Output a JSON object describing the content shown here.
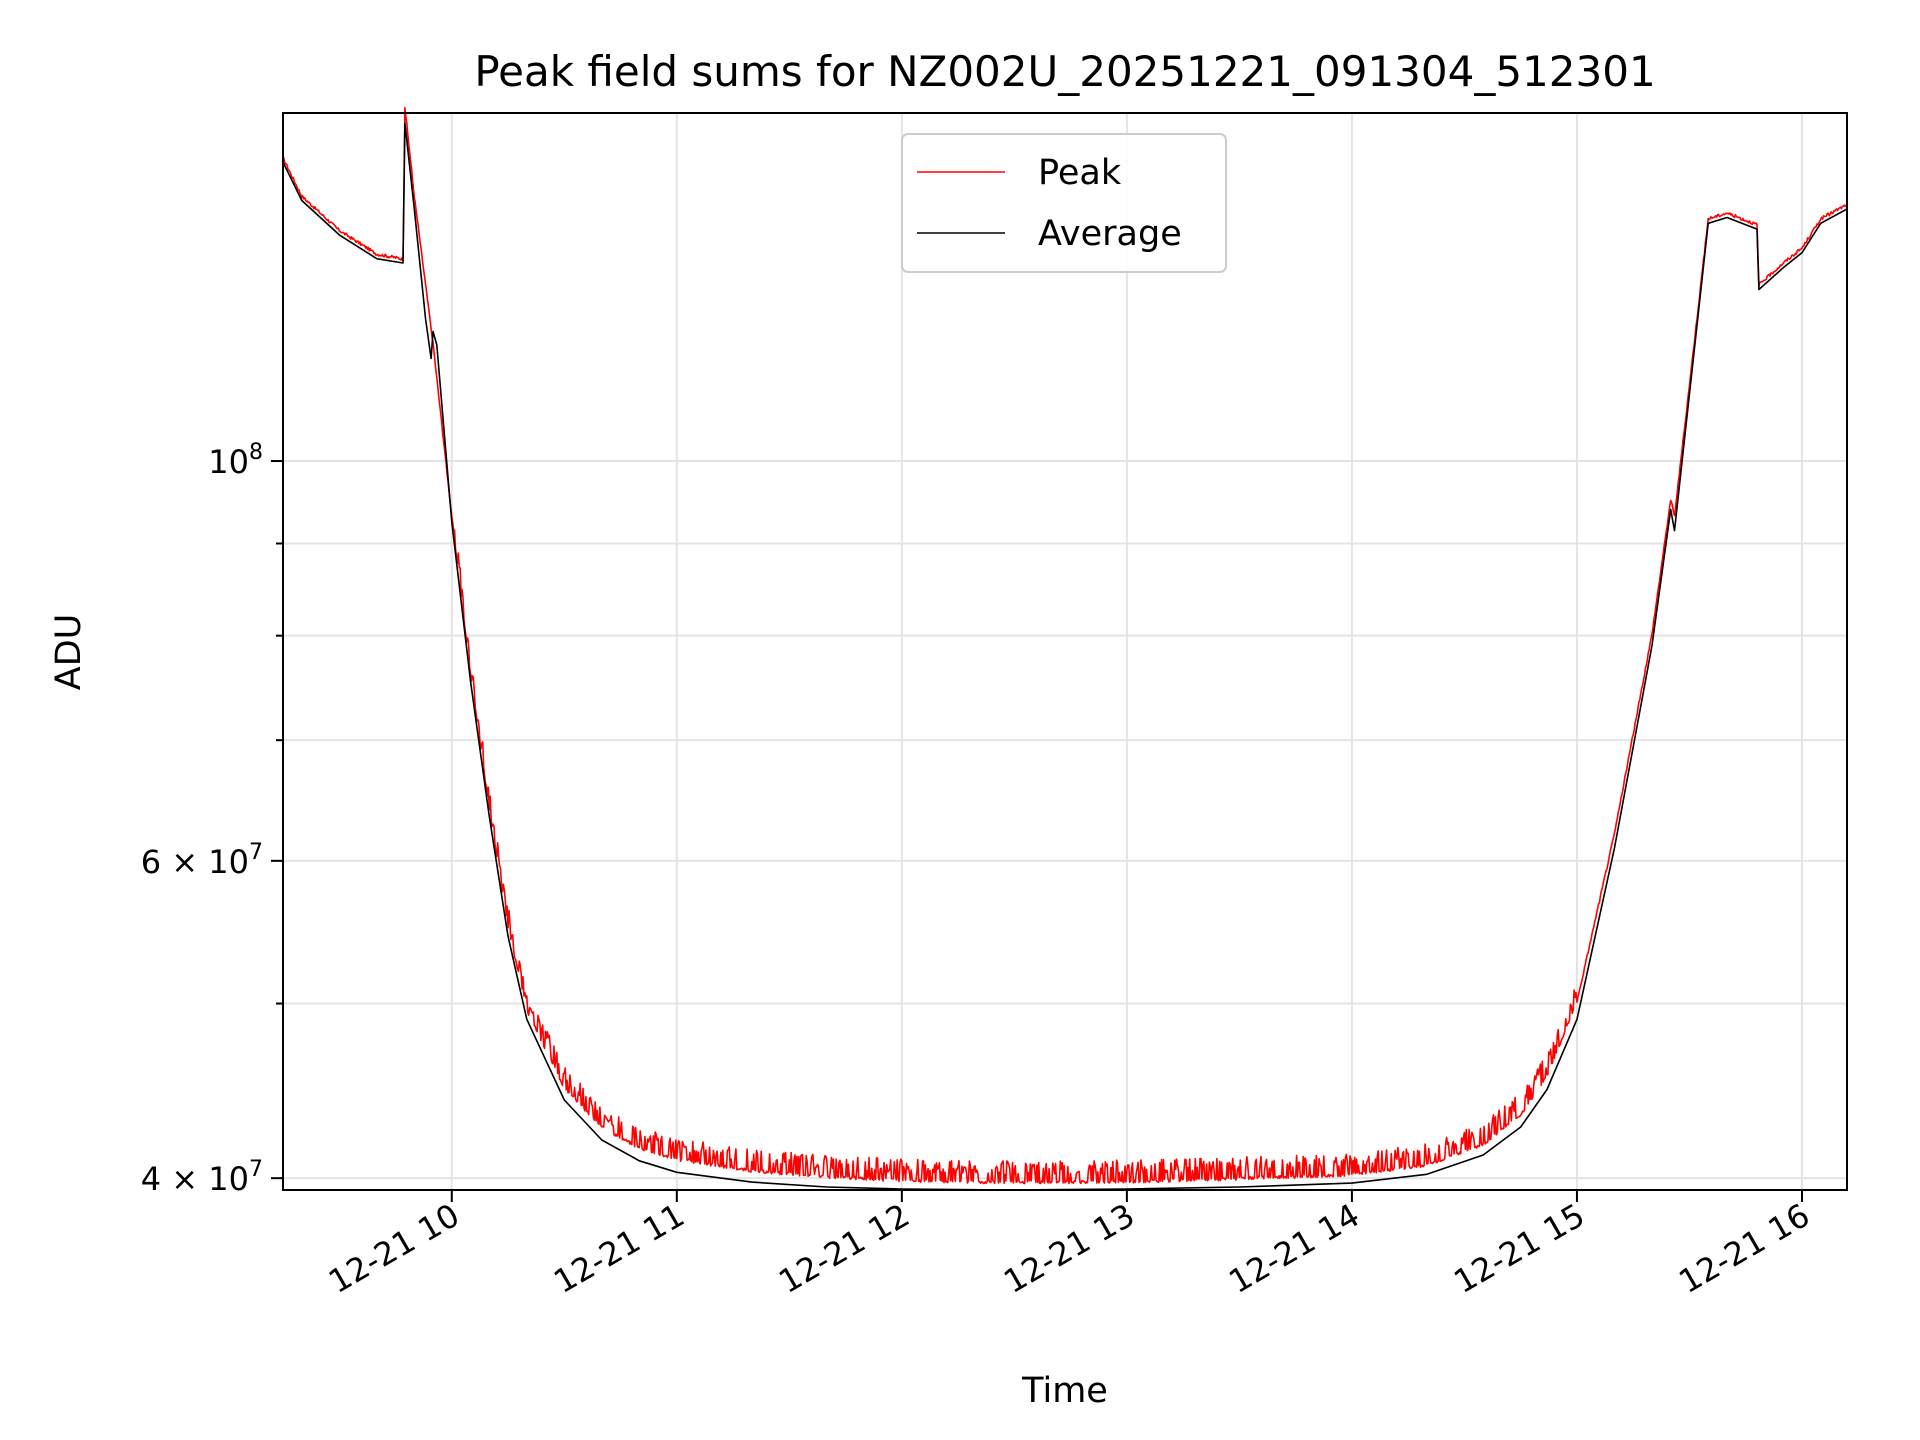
{
  "chart_data": {
    "type": "line",
    "title": "Peak field sums for NZ002U_20251221_091304_512301",
    "xlabel": "Time",
    "ylabel": "ADU",
    "yscale": "log",
    "ylim": [
      39400000,
      156000000
    ],
    "xlim": [
      "2025-12-21 09:15",
      "2025-12-21 16:12"
    ],
    "x_ticks": [
      {
        "value": "2025-12-21 10:00",
        "label": "12-21 10"
      },
      {
        "value": "2025-12-21 11:00",
        "label": "12-21 11"
      },
      {
        "value": "2025-12-21 12:00",
        "label": "12-21 12"
      },
      {
        "value": "2025-12-21 13:00",
        "label": "12-21 13"
      },
      {
        "value": "2025-12-21 14:00",
        "label": "12-21 14"
      },
      {
        "value": "2025-12-21 15:00",
        "label": "12-21 15"
      },
      {
        "value": "2025-12-21 16:00",
        "label": "12-21 16"
      }
    ],
    "y_major_ticks": [
      {
        "value": 40000000,
        "base": "4 × 10",
        "exp": "7"
      },
      {
        "value": 60000000,
        "base": "6 × 10",
        "exp": "7"
      },
      {
        "value": 100000000,
        "base": "10",
        "exp": "8"
      }
    ],
    "y_minor_ticks": [
      50000000,
      70000000,
      80000000,
      90000000,
      200000000
    ],
    "grid": true,
    "legend_position": "top-center",
    "series": [
      {
        "name": "Peak",
        "color": "#ff0000",
        "style": "noisy-upper",
        "points": [
          [
            "2025-12-21 09:15",
            147000000
          ],
          [
            "2025-12-21 09:20",
            140000000
          ],
          [
            "2025-12-21 09:30",
            134000000
          ],
          [
            "2025-12-21 09:40",
            130000000
          ],
          [
            "2025-12-21 09:47",
            129200000
          ],
          [
            "2025-12-21 09:47.5",
            157000000
          ],
          [
            "2025-12-21 09:50",
            140000000
          ],
          [
            "2025-12-21 09:55",
            116000000
          ],
          [
            "2025-12-21 10:00",
            93000000
          ],
          [
            "2025-12-21 10:05",
            76000000
          ],
          [
            "2025-12-21 10:10",
            64000000
          ],
          [
            "2025-12-21 10:15",
            55000000
          ],
          [
            "2025-12-21 10:20",
            49500000
          ],
          [
            "2025-12-21 10:30",
            44800000
          ],
          [
            "2025-12-21 10:40",
            42600000
          ],
          [
            "2025-12-21 10:50",
            41500000
          ],
          [
            "2025-12-21 11:00",
            40900000
          ],
          [
            "2025-12-21 11:20",
            40300000
          ],
          [
            "2025-12-21 11:40",
            40000000
          ],
          [
            "2025-12-21 12:00",
            39800000
          ],
          [
            "2025-12-21 12:30",
            39700000
          ],
          [
            "2025-12-21 13:00",
            39750000
          ],
          [
            "2025-12-21 13:30",
            39900000
          ],
          [
            "2025-12-21 14:00",
            40100000
          ],
          [
            "2025-12-21 14:20",
            40600000
          ],
          [
            "2025-12-21 14:35",
            41700000
          ],
          [
            "2025-12-21 14:45",
            43300000
          ],
          [
            "2025-12-21 14:52",
            45500000
          ],
          [
            "2025-12-21 15:00",
            50000000
          ],
          [
            "2025-12-21 15:10",
            62000000
          ],
          [
            "2025-12-21 15:20",
            80000000
          ],
          [
            "2025-12-21 15:25",
            95000000
          ],
          [
            "2025-12-21 15:26",
            93000000
          ],
          [
            "2025-12-21 15:30",
            110000000
          ],
          [
            "2025-12-21 15:35",
            136000000
          ],
          [
            "2025-12-21 15:40",
            137000000
          ],
          [
            "2025-12-21 15:48",
            135000000
          ],
          [
            "2025-12-21 15:48.5",
            125000000
          ],
          [
            "2025-12-21 15:55",
            128500000
          ],
          [
            "2025-12-21 16:00",
            131000000
          ],
          [
            "2025-12-21 16:05",
            136000000
          ],
          [
            "2025-12-21 16:12",
            138500000
          ]
        ]
      },
      {
        "name": "Average",
        "color": "#000000",
        "style": "smooth",
        "points": [
          [
            "2025-12-21 09:15",
            146500000
          ],
          [
            "2025-12-21 09:20",
            139500000
          ],
          [
            "2025-12-21 09:30",
            133500000
          ],
          [
            "2025-12-21 09:40",
            129500000
          ],
          [
            "2025-12-21 09:47",
            128800000
          ],
          [
            "2025-12-21 09:47.5",
            154000000
          ],
          [
            "2025-12-21 09:50",
            138000000
          ],
          [
            "2025-12-21 09:53",
            120000000
          ],
          [
            "2025-12-21 09:54.5",
            114000000
          ],
          [
            "2025-12-21 09:55",
            118000000
          ],
          [
            "2025-12-21 09:56",
            116000000
          ],
          [
            "2025-12-21 10:00",
            92500000
          ],
          [
            "2025-12-21 10:05",
            75500000
          ],
          [
            "2025-12-21 10:10",
            63500000
          ],
          [
            "2025-12-21 10:15",
            54500000
          ],
          [
            "2025-12-21 10:20",
            49000000
          ],
          [
            "2025-12-21 10:30",
            44200000
          ],
          [
            "2025-12-21 10:40",
            42000000
          ],
          [
            "2025-12-21 10:50",
            40900000
          ],
          [
            "2025-12-21 11:00",
            40300000
          ],
          [
            "2025-12-21 11:20",
            39800000
          ],
          [
            "2025-12-21 11:40",
            39550000
          ],
          [
            "2025-12-21 12:00",
            39450000
          ],
          [
            "2025-12-21 12:30",
            39400000
          ],
          [
            "2025-12-21 13:00",
            39450000
          ],
          [
            "2025-12-21 13:30",
            39550000
          ],
          [
            "2025-12-21 14:00",
            39750000
          ],
          [
            "2025-12-21 14:20",
            40200000
          ],
          [
            "2025-12-21 14:35",
            41200000
          ],
          [
            "2025-12-21 14:45",
            42700000
          ],
          [
            "2025-12-21 14:52",
            44800000
          ],
          [
            "2025-12-21 15:00",
            49000000
          ],
          [
            "2025-12-21 15:10",
            61000000
          ],
          [
            "2025-12-21 15:20",
            79000000
          ],
          [
            "2025-12-21 15:25",
            94000000
          ],
          [
            "2025-12-21 15:26",
            91500000
          ],
          [
            "2025-12-21 15:30",
            109000000
          ],
          [
            "2025-12-21 15:35",
            135500000
          ],
          [
            "2025-12-21 15:40",
            136500000
          ],
          [
            "2025-12-21 15:48",
            134500000
          ],
          [
            "2025-12-21 15:48.5",
            124500000
          ],
          [
            "2025-12-21 15:55",
            128000000
          ],
          [
            "2025-12-21 16:00",
            130500000
          ],
          [
            "2025-12-21 16:05",
            135500000
          ],
          [
            "2025-12-21 16:12",
            138000000
          ]
        ]
      }
    ]
  }
}
